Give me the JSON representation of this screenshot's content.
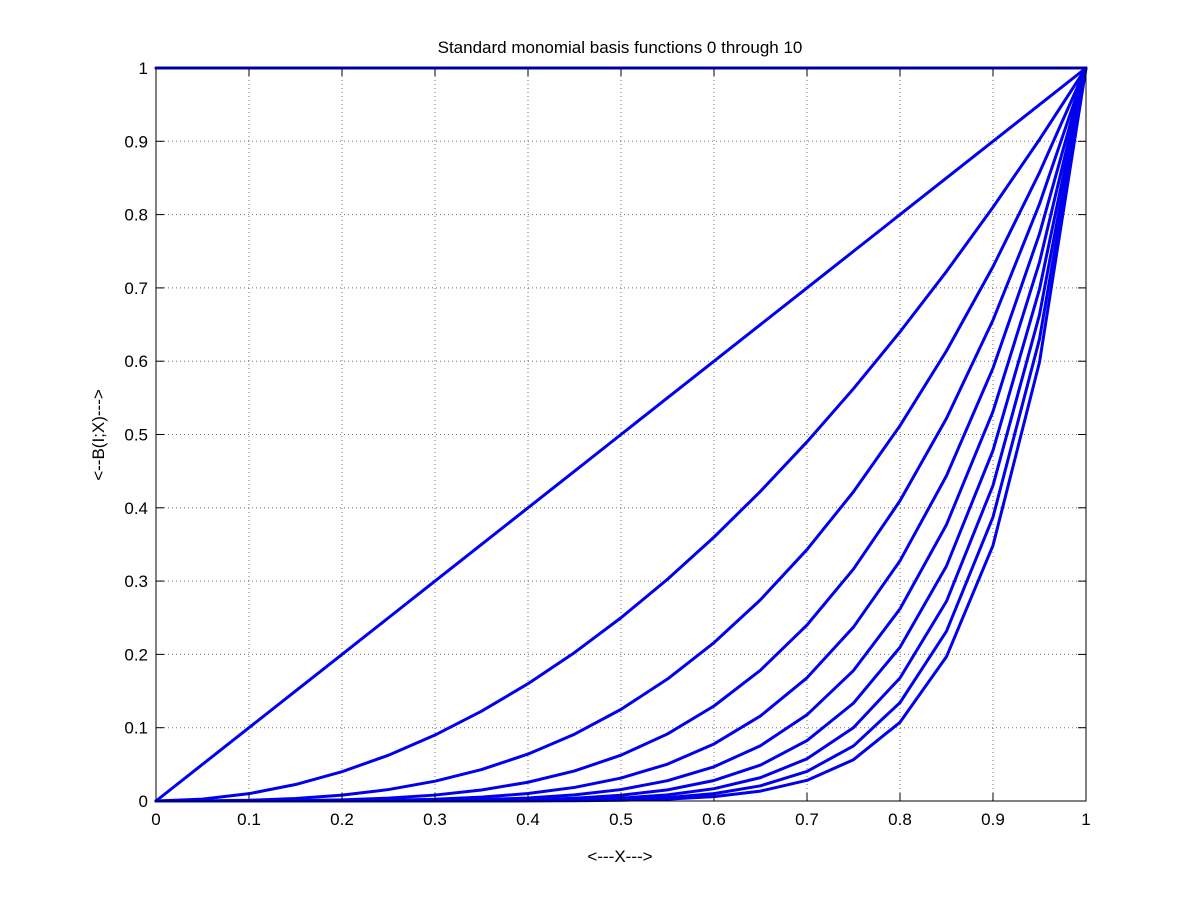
{
  "chart_data": {
    "type": "line",
    "title": "Standard monomial basis functions 0 through 10",
    "xlabel": "<---X--->",
    "ylabel": "<--B(I;X)--->",
    "xlim": [
      0,
      1
    ],
    "ylim": [
      0,
      1
    ],
    "grid": true,
    "line_color": "#0000ee",
    "x_ticks": [
      "0",
      "0.1",
      "0.2",
      "0.3",
      "0.4",
      "0.5",
      "0.6",
      "0.7",
      "0.8",
      "0.9",
      "1"
    ],
    "y_ticks": [
      "0",
      "0.1",
      "0.2",
      "0.3",
      "0.4",
      "0.5",
      "0.6",
      "0.7",
      "0.8",
      "0.9",
      "1"
    ],
    "x": [
      0,
      0.05,
      0.1,
      0.15,
      0.2,
      0.25,
      0.3,
      0.35,
      0.4,
      0.45,
      0.5,
      0.55,
      0.6,
      0.65,
      0.7,
      0.75,
      0.8,
      0.85,
      0.9,
      0.95,
      1
    ],
    "series": [
      {
        "values": [
          1,
          1,
          1,
          1,
          1,
          1,
          1,
          1,
          1,
          1,
          1,
          1,
          1,
          1,
          1,
          1,
          1,
          1,
          1,
          1,
          1
        ]
      },
      {
        "values": [
          0,
          0.05,
          0.1,
          0.15,
          0.2,
          0.25,
          0.3,
          0.35,
          0.4,
          0.45,
          0.5,
          0.55,
          0.6,
          0.65,
          0.7,
          0.75,
          0.8,
          0.85,
          0.9,
          0.95,
          1
        ]
      },
      {
        "values": [
          0,
          0.0025,
          0.01,
          0.0225,
          0.04,
          0.0625,
          0.09,
          0.1225,
          0.16,
          0.2025,
          0.25,
          0.3025,
          0.36,
          0.4225,
          0.49,
          0.5625,
          0.64,
          0.7225,
          0.81,
          0.9025,
          1
        ]
      },
      {
        "values": [
          0,
          0.0001,
          0.001,
          0.0034,
          0.008,
          0.0156,
          0.027,
          0.0429,
          0.064,
          0.0911,
          0.125,
          0.1664,
          0.216,
          0.2746,
          0.343,
          0.4219,
          0.512,
          0.6141,
          0.729,
          0.8574,
          1
        ]
      },
      {
        "values": [
          0,
          0,
          0.0001,
          0.0005,
          0.0016,
          0.0039,
          0.0081,
          0.015,
          0.0256,
          0.041,
          0.0625,
          0.0915,
          0.1296,
          0.1785,
          0.2401,
          0.3164,
          0.4096,
          0.522,
          0.6561,
          0.8145,
          1
        ]
      },
      {
        "values": [
          0,
          0,
          0,
          0.0001,
          0.0003,
          0.001,
          0.0024,
          0.0053,
          0.0102,
          0.0185,
          0.0313,
          0.0503,
          0.0778,
          0.116,
          0.1681,
          0.2373,
          0.3277,
          0.4437,
          0.5905,
          0.7738,
          1
        ]
      },
      {
        "values": [
          0,
          0,
          0,
          0,
          0.0001,
          0.0002,
          0.0007,
          0.0018,
          0.0041,
          0.0083,
          0.0156,
          0.0277,
          0.0467,
          0.0754,
          0.1176,
          0.178,
          0.2621,
          0.3771,
          0.5314,
          0.7351,
          1
        ]
      },
      {
        "values": [
          0,
          0,
          0,
          0,
          0,
          0.0001,
          0.0002,
          0.0006,
          0.0016,
          0.0037,
          0.0078,
          0.0152,
          0.028,
          0.049,
          0.0824,
          0.1335,
          0.2097,
          0.3206,
          0.4783,
          0.6983,
          1
        ]
      },
      {
        "values": [
          0,
          0,
          0,
          0,
          0,
          0,
          0.0001,
          0.0002,
          0.0007,
          0.0017,
          0.0039,
          0.0084,
          0.0168,
          0.0319,
          0.0576,
          0.1001,
          0.1678,
          0.2725,
          0.4305,
          0.6634,
          1
        ]
      },
      {
        "values": [
          0,
          0,
          0,
          0,
          0,
          0,
          0,
          0.0001,
          0.0003,
          0.0008,
          0.002,
          0.0046,
          0.0101,
          0.0207,
          0.0404,
          0.0751,
          0.1342,
          0.2316,
          0.3874,
          0.6302,
          1
        ]
      },
      {
        "values": [
          0,
          0,
          0,
          0,
          0,
          0,
          0,
          0,
          0.0001,
          0.0003,
          0.001,
          0.0025,
          0.006,
          0.0135,
          0.0282,
          0.0563,
          0.1074,
          0.1969,
          0.3487,
          0.5987,
          1
        ]
      }
    ]
  }
}
